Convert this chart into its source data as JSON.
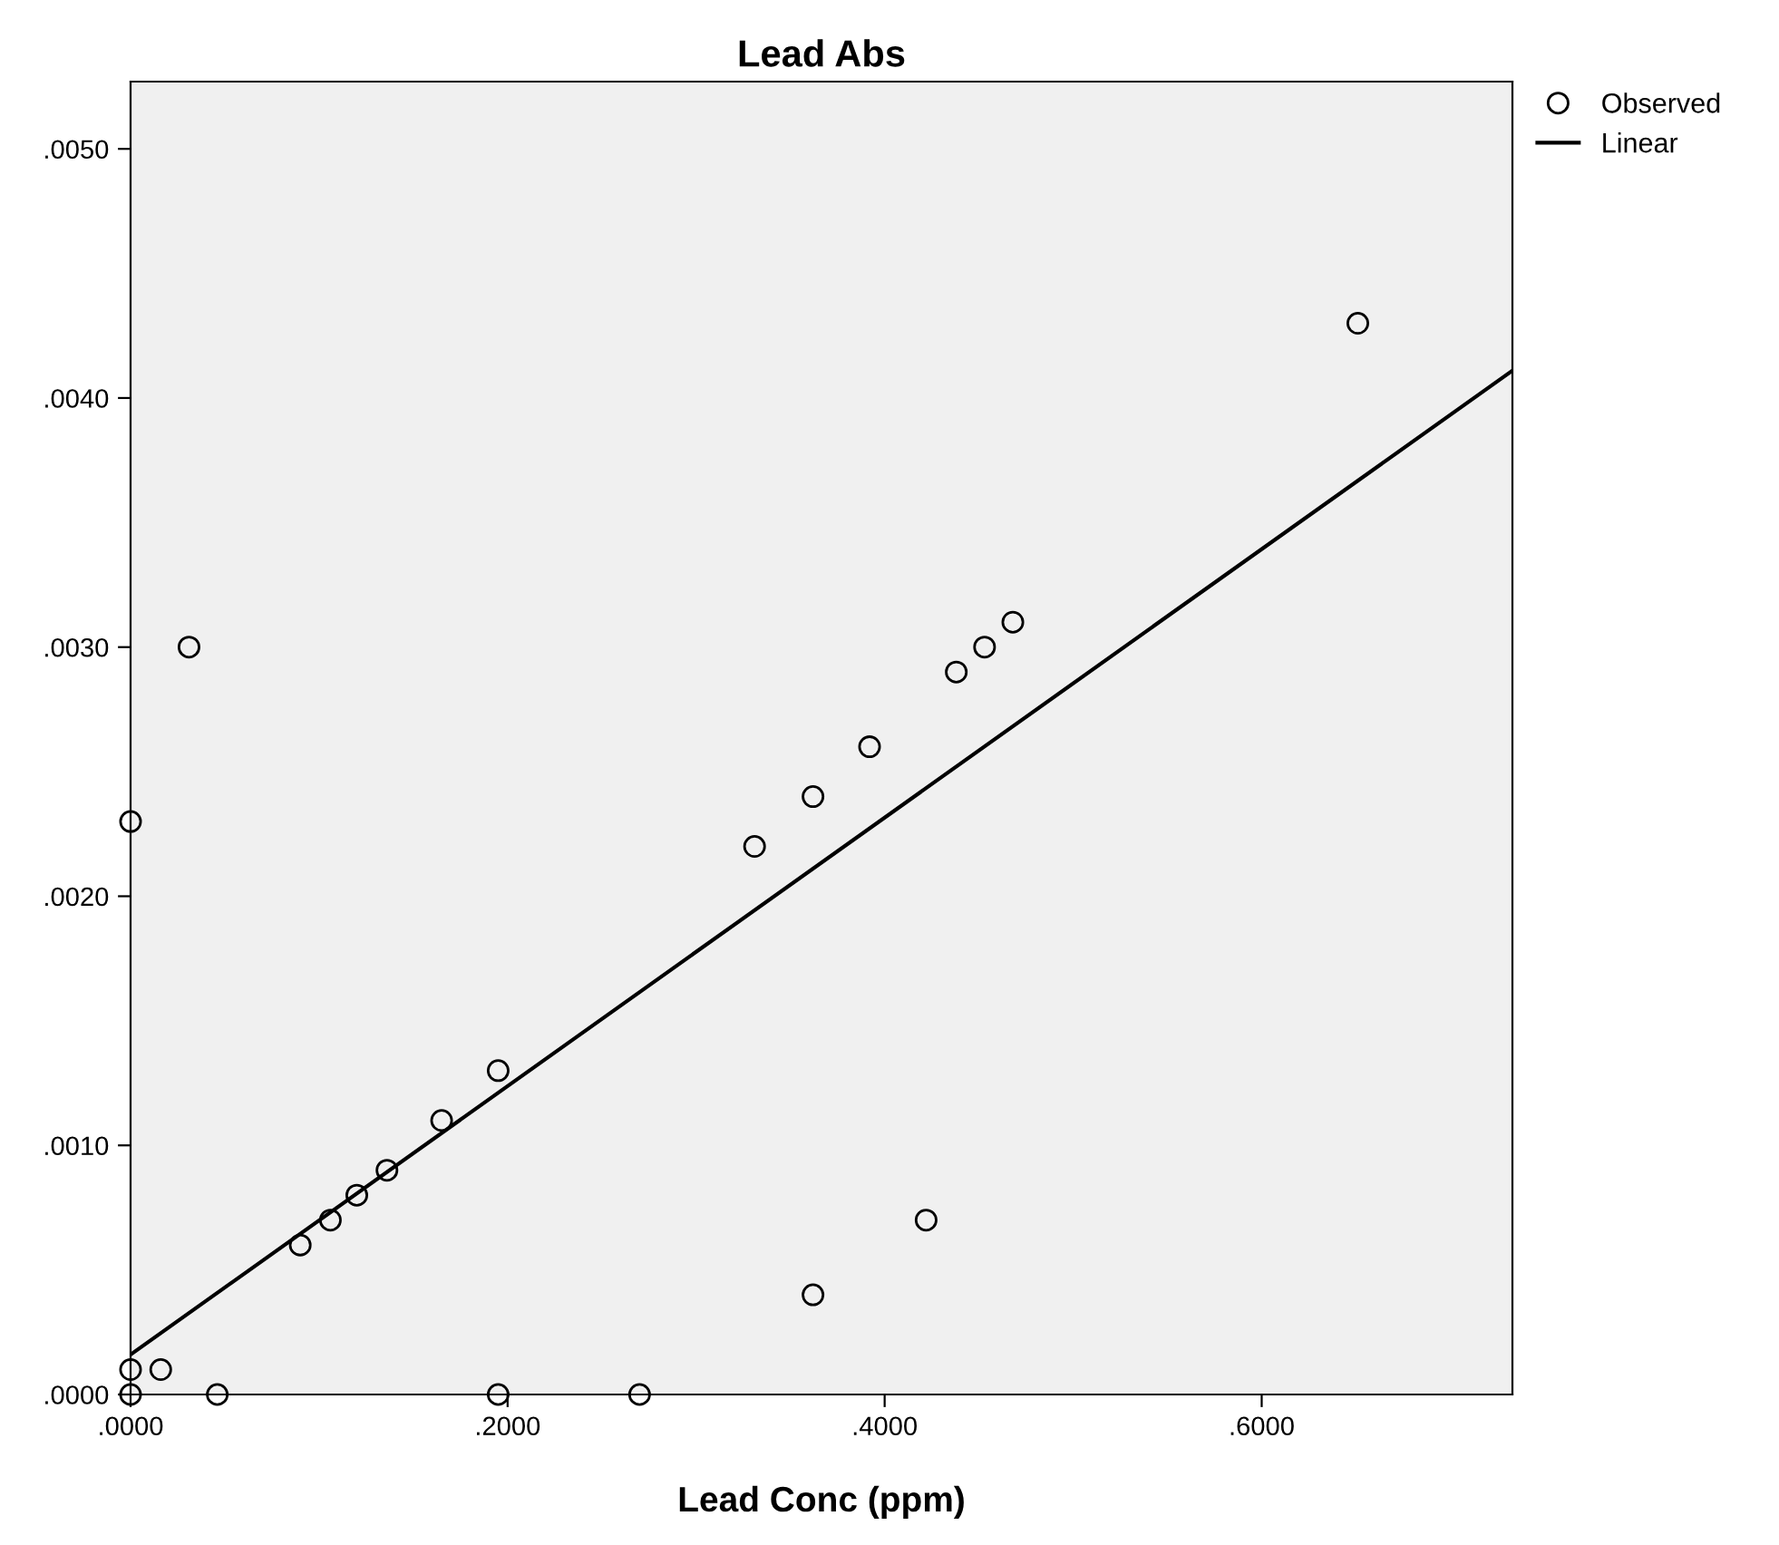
{
  "chart_data": {
    "type": "scatter",
    "title": "Lead Abs",
    "xlabel": "Lead Conc (ppm)",
    "xlim": [
      0,
      0.733
    ],
    "ylim": [
      0,
      0.00527
    ],
    "xticks": [
      {
        "value": 0,
        "label": ".0000"
      },
      {
        "value": 0.2,
        "label": ".2000"
      },
      {
        "value": 0.4,
        "label": ".4000"
      },
      {
        "value": 0.6,
        "label": ".6000"
      }
    ],
    "yticks": [
      {
        "value": 0,
        "label": ".0000"
      },
      {
        "value": 0.001,
        "label": ".0010"
      },
      {
        "value": 0.002,
        "label": ".0020"
      },
      {
        "value": 0.003,
        "label": ".0030"
      },
      {
        "value": 0.004,
        "label": ".0040"
      },
      {
        "value": 0.005,
        "label": ".0050"
      }
    ],
    "grid": false,
    "legend": "top right",
    "series": [
      {
        "name": "Observed",
        "color": "#000000",
        "marker": "circle",
        "x": [
          0,
          0.031,
          0,
          0,
          0.016,
          0.046,
          0.09,
          0.106,
          0.12,
          0.136,
          0.165,
          0.195,
          0.195,
          0.27,
          0.331,
          0.362,
          0.392,
          0.438,
          0.453,
          0.468,
          0.651,
          0.422,
          0.362
        ],
        "values": [
          0.0023,
          0.003,
          0,
          0.0001,
          0.0001,
          0,
          0.0006,
          0.0007,
          0.0008,
          0.0009,
          0.0011,
          0.0013,
          0,
          0,
          0.0022,
          0.0024,
          0.0026,
          0.0029,
          0.003,
          0.0031,
          0.0043,
          0.0007,
          0.0004
        ]
      },
      {
        "name": "Linear",
        "type": "line",
        "color": "#000000",
        "line_style": "solid",
        "x": [
          0,
          0.733
        ],
        "values": [
          0.00016,
          0.00411
        ]
      }
    ]
  }
}
